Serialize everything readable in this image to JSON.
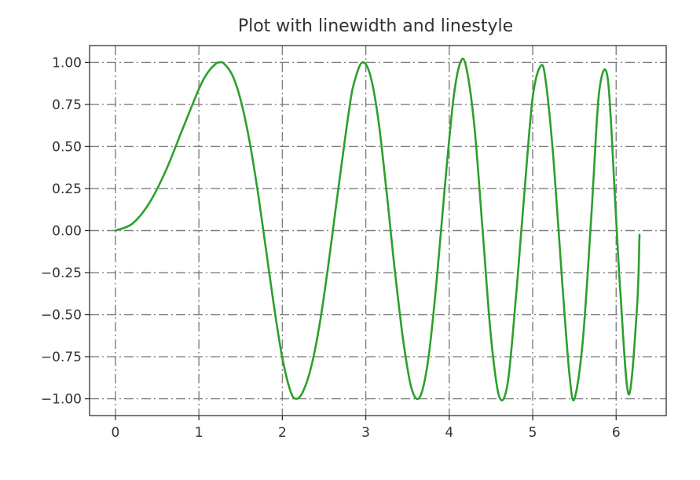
{
  "chart_data": {
    "type": "line",
    "title": "Plot with linewidth and linestyle",
    "xlabel": "",
    "ylabel": "",
    "xlim": [
      -0.31,
      6.6
    ],
    "ylim": [
      -1.1,
      1.1
    ],
    "grid": true,
    "grid_linestyle": "dashdot",
    "x_ticks": [
      0,
      1,
      2,
      3,
      4,
      5,
      6
    ],
    "x_tick_labels": [
      "0",
      "1",
      "2",
      "3",
      "4",
      "5",
      "6"
    ],
    "y_ticks": [
      1.0,
      0.75,
      0.5,
      0.25,
      0.0,
      -0.25,
      -0.5,
      -0.75,
      -1.0
    ],
    "y_tick_labels": [
      "1.00",
      "0.75",
      "0.50",
      "0.25",
      "0.00",
      "−0.25",
      "−0.50",
      "−0.75",
      "−1.00"
    ],
    "series": [
      {
        "color": "#2ca02c",
        "x": [
          0.0,
          0.2,
          0.4,
          0.6,
          0.8,
          1.0,
          1.1,
          1.2,
          1.25,
          1.3,
          1.4,
          1.5,
          1.6,
          1.7,
          1.8,
          1.9,
          2.0,
          2.1,
          2.17,
          2.25,
          2.35,
          2.45,
          2.55,
          2.65,
          2.75,
          2.8,
          2.85,
          2.95,
          3.05,
          3.15,
          3.25,
          3.3,
          3.35,
          3.45,
          3.55,
          3.65,
          3.75,
          3.85,
          3.95,
          4.05,
          4.13,
          4.2,
          4.3,
          4.4,
          4.5,
          4.6,
          4.7,
          4.8,
          4.85,
          4.9,
          5.0,
          5.1,
          5.16,
          5.25,
          5.35,
          5.44,
          5.5,
          5.6,
          5.7,
          5.73,
          5.8,
          5.9,
          5.99,
          6.05,
          6.15,
          6.25,
          6.28
        ],
        "y": [
          0.0,
          0.04,
          0.159,
          0.352,
          0.598,
          0.841,
          0.935,
          0.991,
          1.0,
          0.993,
          0.925,
          0.778,
          0.549,
          0.25,
          -0.098,
          -0.45,
          -0.757,
          -0.958,
          -1.0,
          -0.955,
          -0.802,
          -0.547,
          -0.209,
          0.171,
          0.541,
          0.717,
          0.86,
          0.997,
          0.93,
          0.66,
          0.227,
          -0.011,
          -0.246,
          -0.659,
          -0.942,
          -0.988,
          -0.76,
          -0.292,
          0.276,
          0.782,
          0.995,
          0.979,
          0.626,
          0.002,
          -0.632,
          -0.988,
          -0.907,
          -0.392,
          -0.085,
          0.221,
          0.792,
          0.981,
          0.874,
          0.419,
          -0.282,
          -0.854,
          -1.0,
          -0.657,
          0.066,
          0.318,
          0.84,
          0.902,
          0.158,
          -0.362,
          -0.974,
          -0.458,
          -0.025
        ]
      }
    ]
  }
}
